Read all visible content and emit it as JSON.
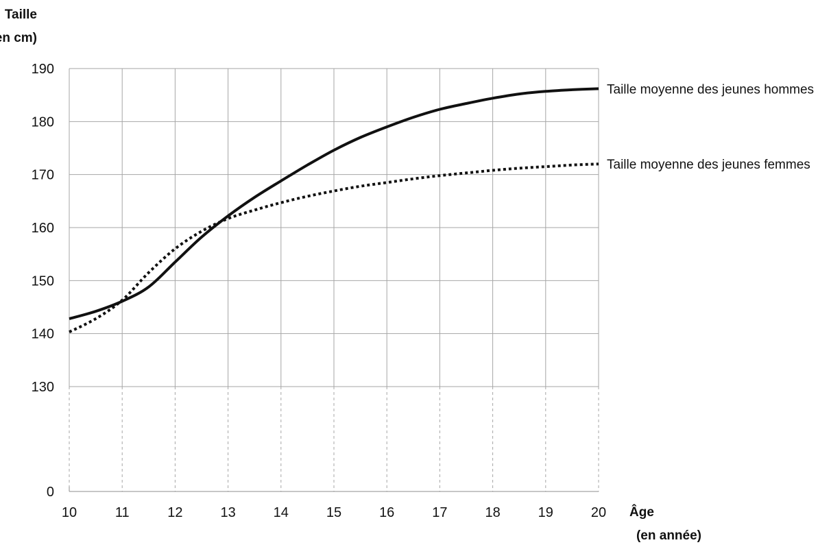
{
  "chart_data": {
    "type": "line",
    "ylabel_line1": "Taille",
    "ylabel_line2": "(en cm)",
    "xlabel_line1": "Âge",
    "xlabel_line2": "(en année)",
    "x_ticks": [
      10,
      11,
      12,
      13,
      14,
      15,
      16,
      17,
      18,
      19,
      20
    ],
    "y_ticks": [
      0,
      130,
      140,
      150,
      160,
      170,
      180,
      190
    ],
    "xlim": [
      10,
      20
    ],
    "ylim": [
      130,
      190
    ],
    "y_axis_break": "between 0 and 130",
    "grid": true,
    "series": [
      {
        "name": "Taille moyenne des jeunes hommes",
        "line_style": "solid",
        "color": "#111111",
        "x": [
          10,
          10.5,
          11,
          11.5,
          12,
          12.5,
          13,
          13.5,
          14,
          14.5,
          15,
          15.5,
          16,
          16.5,
          17,
          17.5,
          18,
          18.5,
          19,
          19.5,
          20
        ],
        "values": [
          142.8,
          144.2,
          146.1,
          148.8,
          153.5,
          158.2,
          162.2,
          165.7,
          168.8,
          171.8,
          174.6,
          177.0,
          179.0,
          180.8,
          182.3,
          183.4,
          184.4,
          185.2,
          185.7,
          186.0,
          186.2
        ]
      },
      {
        "name": "Taille moyenne des jeunes femmes",
        "line_style": "dotted",
        "color": "#111111",
        "x": [
          10,
          10.5,
          11,
          11.5,
          12,
          12.5,
          13,
          13.5,
          14,
          14.5,
          15,
          15.5,
          16,
          16.5,
          17,
          17.5,
          18,
          18.5,
          19,
          19.5,
          20
        ],
        "values": [
          140.3,
          142.8,
          146.3,
          151.5,
          156.0,
          159.3,
          161.7,
          163.3,
          164.7,
          165.9,
          166.9,
          167.8,
          168.5,
          169.2,
          169.8,
          170.3,
          170.8,
          171.2,
          171.5,
          171.8,
          172.0
        ]
      }
    ]
  }
}
